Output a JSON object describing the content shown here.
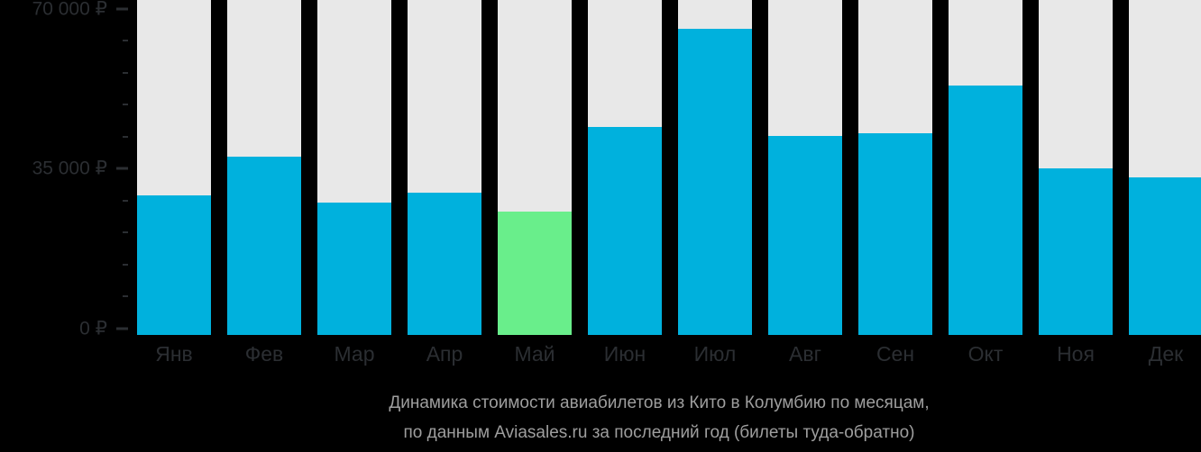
{
  "chart_data": {
    "type": "bar",
    "title": "Динамика стоимости авиабилетов из Кито в Колумбию по месяцам, по данным Aviasales.ru за последний год (билеты туда-обратно)",
    "xlabel": "",
    "ylabel": "",
    "currency": "₽",
    "categories": [
      "Янв",
      "Фев",
      "Мар",
      "Апр",
      "Май",
      "Июн",
      "Июл",
      "Авг",
      "Сен",
      "Окт",
      "Ноя",
      "Дек"
    ],
    "values": [
      29000,
      37500,
      27500,
      29500,
      25500,
      44000,
      65500,
      42000,
      42500,
      53000,
      35000,
      33000
    ],
    "highlight_index": 4,
    "highlighted_month": "Май",
    "ylim": [
      0,
      70000
    ],
    "yticks_major": [
      {
        "value": 0,
        "label": "0 ₽"
      },
      {
        "value": 35000,
        "label": "35 000 ₽"
      },
      {
        "value": 70000,
        "label": "70 000 ₽"
      }
    ],
    "ytick_minor_step": 7000,
    "grid": false,
    "legend": null
  },
  "caption": {
    "line1": "Динамика стоимости авиабилетов из Кито в Колумбию по месяцам,",
    "line2": "по данным Aviasales.ru за последний год (билеты туда-обратно)"
  },
  "colors": {
    "bar": "#00b1dd",
    "highlight": "#69ee8b",
    "column_background": "#e8e8e8",
    "axis_label": "#2b2e32",
    "caption_text": "#9e9e9e",
    "page_background": "#000000"
  }
}
